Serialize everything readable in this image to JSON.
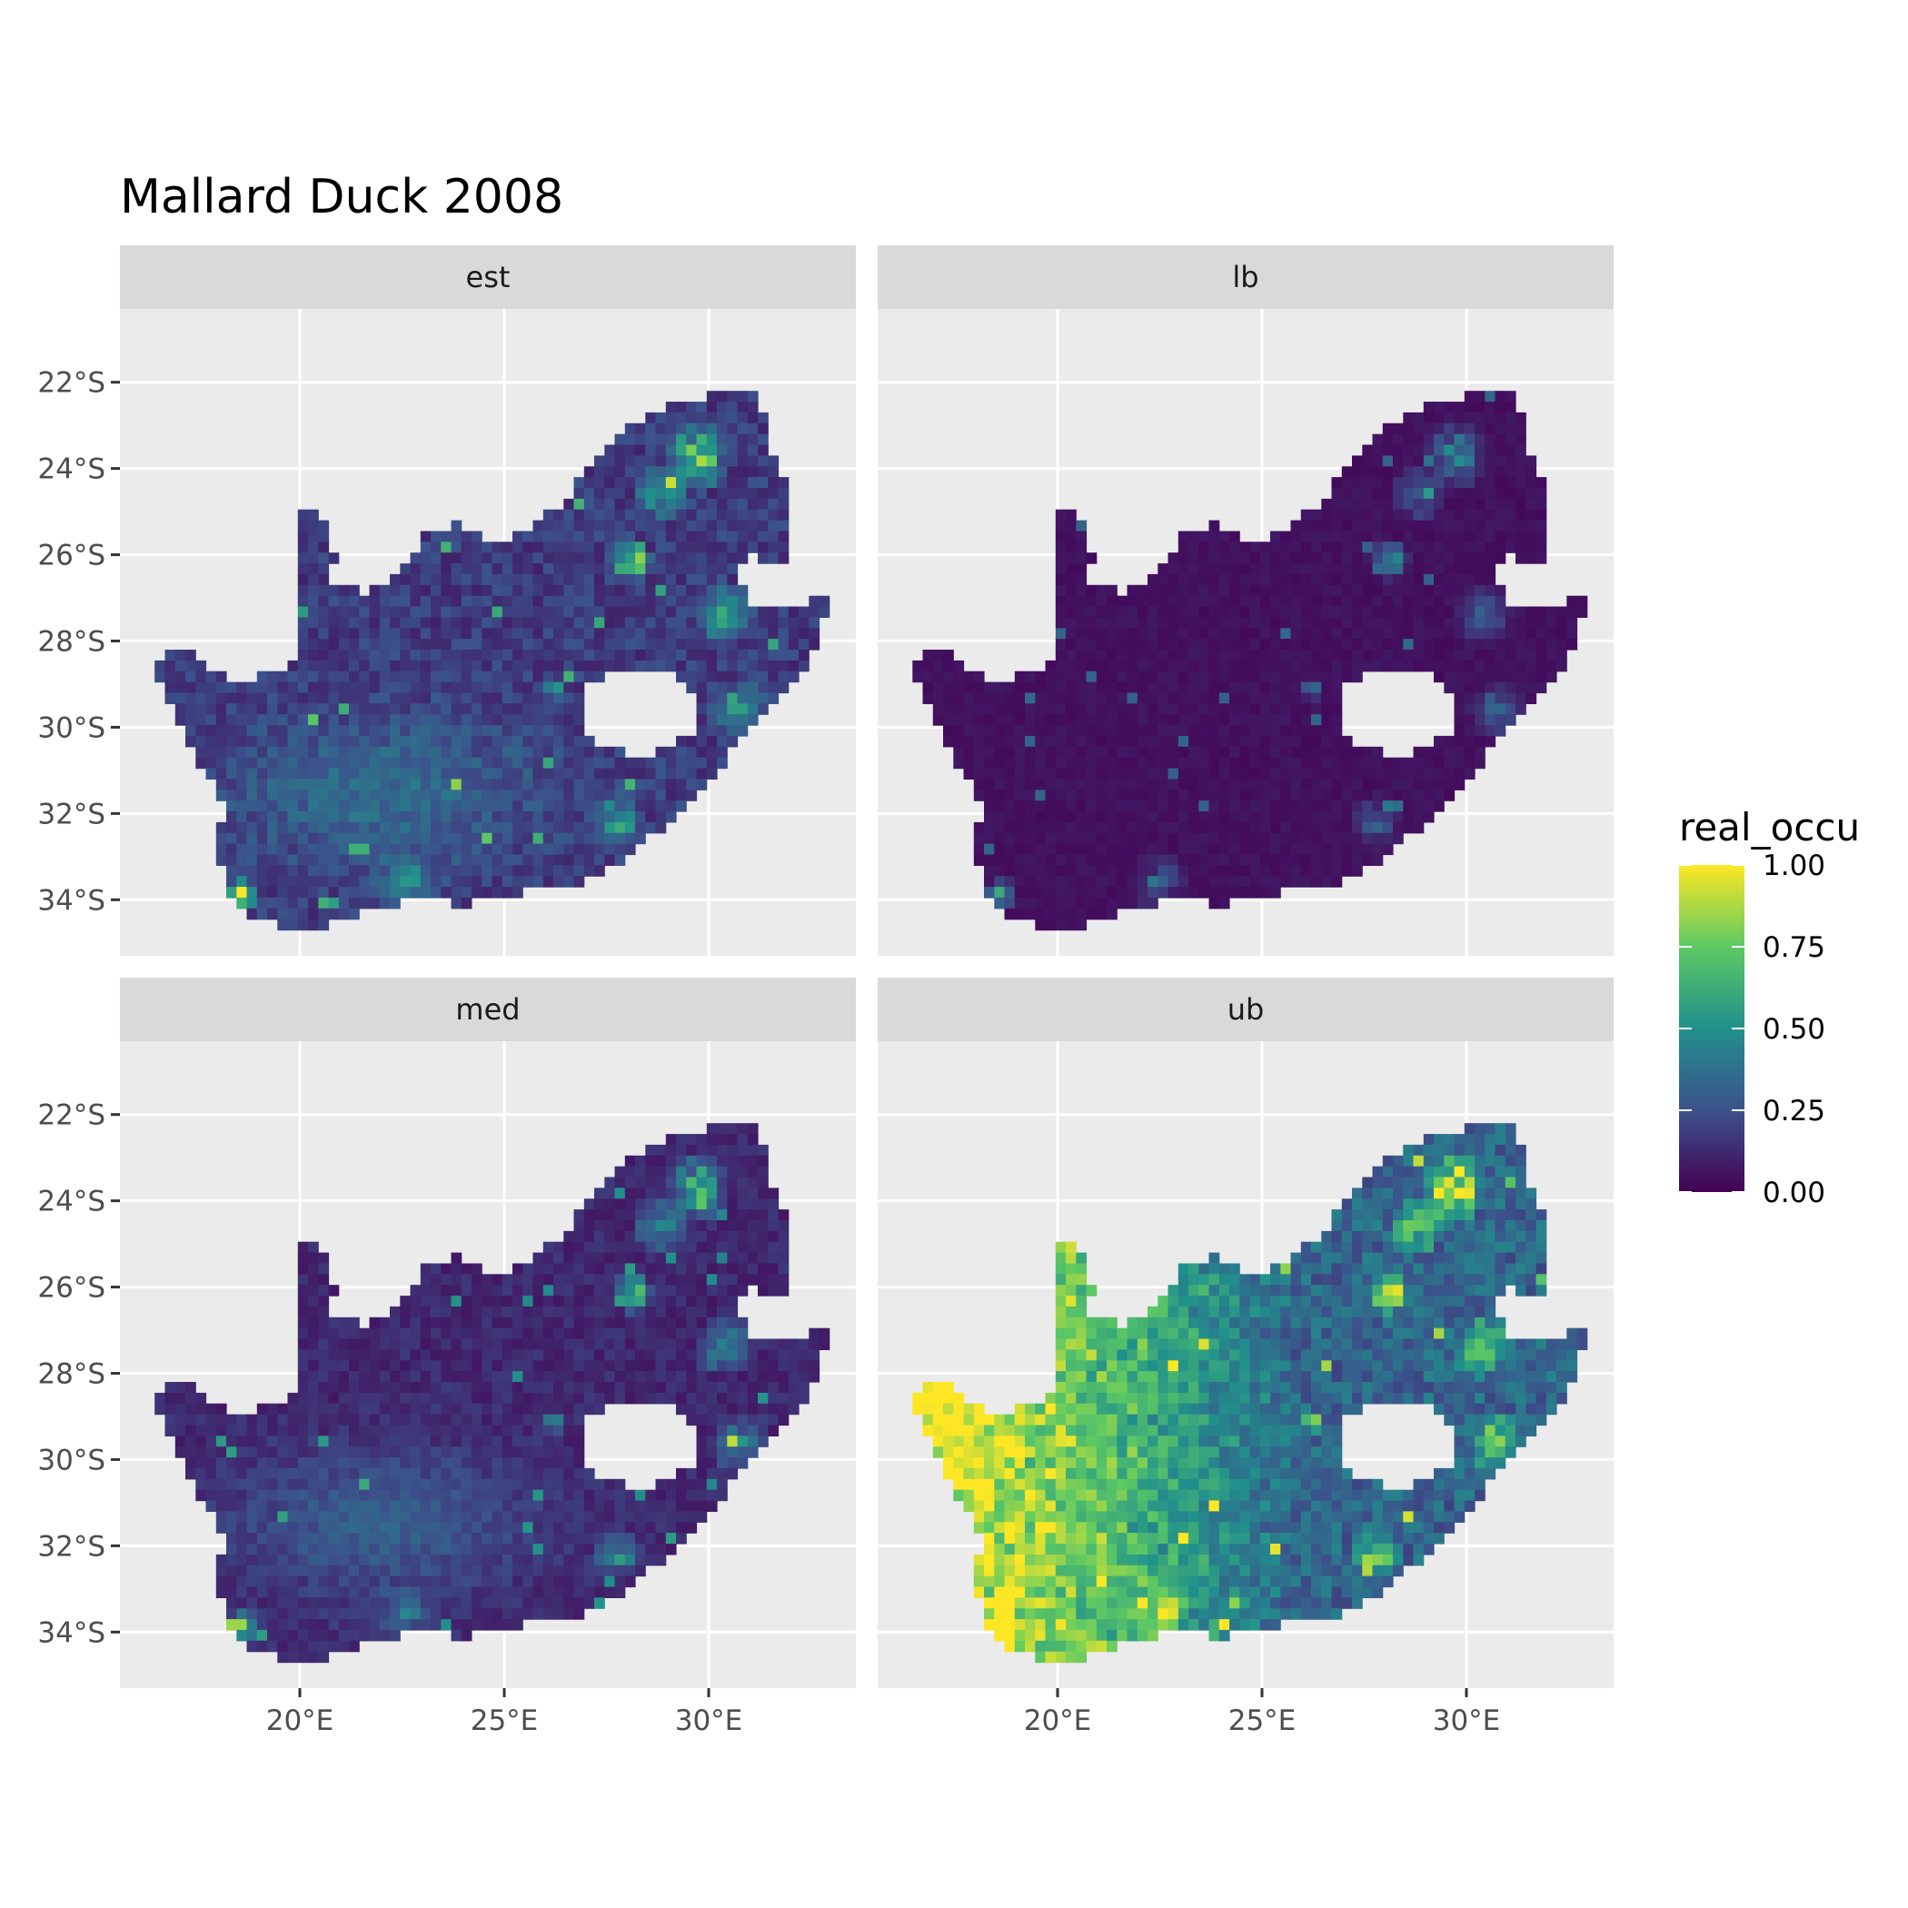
{
  "chart_data": {
    "type": "heatmap",
    "title": "Mallard Duck 2008",
    "x_ticks": [
      {
        "value": 20,
        "label": "20°E"
      },
      {
        "value": 25,
        "label": "25°E"
      },
      {
        "value": 30,
        "label": "30°E"
      }
    ],
    "y_ticks": [
      {
        "value": -22,
        "label": "22°S"
      },
      {
        "value": -24,
        "label": "24°S"
      },
      {
        "value": -26,
        "label": "26°S"
      },
      {
        "value": -28,
        "label": "28°S"
      },
      {
        "value": -30,
        "label": "30°S"
      },
      {
        "value": -32,
        "label": "32°S"
      },
      {
        "value": -34,
        "label": "34°S"
      }
    ],
    "xlim": [
      15.6,
      33.6
    ],
    "ylim": [
      -35.3,
      -20.3
    ],
    "grid": true,
    "legend": {
      "title": "real_occu",
      "position": "right",
      "ticks": [
        {
          "value": 0.0,
          "label": "0.00"
        },
        {
          "value": 0.25,
          "label": "0.25"
        },
        {
          "value": 0.5,
          "label": "0.50"
        },
        {
          "value": 0.75,
          "label": "0.75"
        },
        {
          "value": 1.0,
          "label": "1.00"
        }
      ],
      "colormap": [
        "#440154",
        "#3b528b",
        "#21908c",
        "#5dc963",
        "#fde725"
      ]
    },
    "panels": [
      {
        "label": "est",
        "base_level": 0.18,
        "hotspot_intensity": 0.85
      },
      {
        "label": "lb",
        "base_level": 0.05,
        "hotspot_intensity": 0.55
      },
      {
        "label": "med",
        "base_level": 0.12,
        "hotspot_intensity": 0.75
      },
      {
        "label": "ub",
        "base_level": 0.55,
        "hotspot_intensity": 1.0
      }
    ],
    "outline": [
      [
        16.45,
        -28.6
      ],
      [
        16.8,
        -28.3
      ],
      [
        17.2,
        -28.1
      ],
      [
        17.6,
        -28.6
      ],
      [
        18.3,
        -28.9
      ],
      [
        19.3,
        -28.8
      ],
      [
        19.9,
        -28.4
      ],
      [
        20.0,
        -24.8
      ],
      [
        20.5,
        -25.1
      ],
      [
        20.9,
        -26.0
      ],
      [
        20.7,
        -26.7
      ],
      [
        21.7,
        -26.9
      ],
      [
        22.6,
        -26.3
      ],
      [
        23.0,
        -25.5
      ],
      [
        23.8,
        -25.3
      ],
      [
        24.8,
        -25.7
      ],
      [
        25.5,
        -25.5
      ],
      [
        26.4,
        -24.8
      ],
      [
        27.1,
        -24.0
      ],
      [
        28.0,
        -23.0
      ],
      [
        29.2,
        -22.5
      ],
      [
        30.0,
        -22.3
      ],
      [
        31.2,
        -22.3
      ],
      [
        31.5,
        -23.5
      ],
      [
        32.0,
        -24.5
      ],
      [
        32.0,
        -26.0
      ],
      [
        31.5,
        -26.3
      ],
      [
        31.0,
        -25.9
      ],
      [
        30.7,
        -26.5
      ],
      [
        31.0,
        -27.2
      ],
      [
        32.1,
        -27.3
      ],
      [
        32.9,
        -26.9
      ],
      [
        32.8,
        -27.8
      ],
      [
        32.4,
        -28.6
      ],
      [
        31.9,
        -29.2
      ],
      [
        31.0,
        -30.0
      ],
      [
        30.2,
        -31.0
      ],
      [
        29.0,
        -32.2
      ],
      [
        28.0,
        -33.0
      ],
      [
        27.0,
        -33.6
      ],
      [
        25.7,
        -33.8
      ],
      [
        24.0,
        -34.1
      ],
      [
        22.6,
        -34.0
      ],
      [
        21.2,
        -34.4
      ],
      [
        20.0,
        -34.8
      ],
      [
        19.3,
        -34.5
      ],
      [
        18.8,
        -34.4
      ],
      [
        18.3,
        -33.9
      ],
      [
        18.0,
        -33.0
      ],
      [
        17.9,
        -32.5
      ],
      [
        18.2,
        -31.8
      ],
      [
        17.3,
        -30.5
      ],
      [
        16.9,
        -29.6
      ]
    ],
    "hole_lesotho": {
      "cx": 28.3,
      "cy": -29.6,
      "rx": 1.45,
      "ry": 1.0
    },
    "hotspots": [
      {
        "lon": 28.1,
        "lat": -26.1,
        "r": 0.55,
        "w": 1.0
      },
      {
        "lon": 29.7,
        "lat": -23.7,
        "r": 0.9,
        "w": 0.75
      },
      {
        "lon": 28.8,
        "lat": -24.6,
        "r": 0.7,
        "w": 0.6
      },
      {
        "lon": 18.6,
        "lat": -33.9,
        "r": 0.45,
        "w": 1.0
      },
      {
        "lon": 30.8,
        "lat": -29.6,
        "r": 0.8,
        "w": 0.5
      },
      {
        "lon": 26.2,
        "lat": -29.1,
        "r": 0.3,
        "w": 0.8
      },
      {
        "lon": 22.5,
        "lat": -33.6,
        "r": 0.8,
        "w": 0.4
      },
      {
        "lon": 27.8,
        "lat": -32.2,
        "r": 0.7,
        "w": 0.45
      },
      {
        "lon": 30.4,
        "lat": -27.4,
        "r": 0.8,
        "w": 0.45
      }
    ]
  }
}
